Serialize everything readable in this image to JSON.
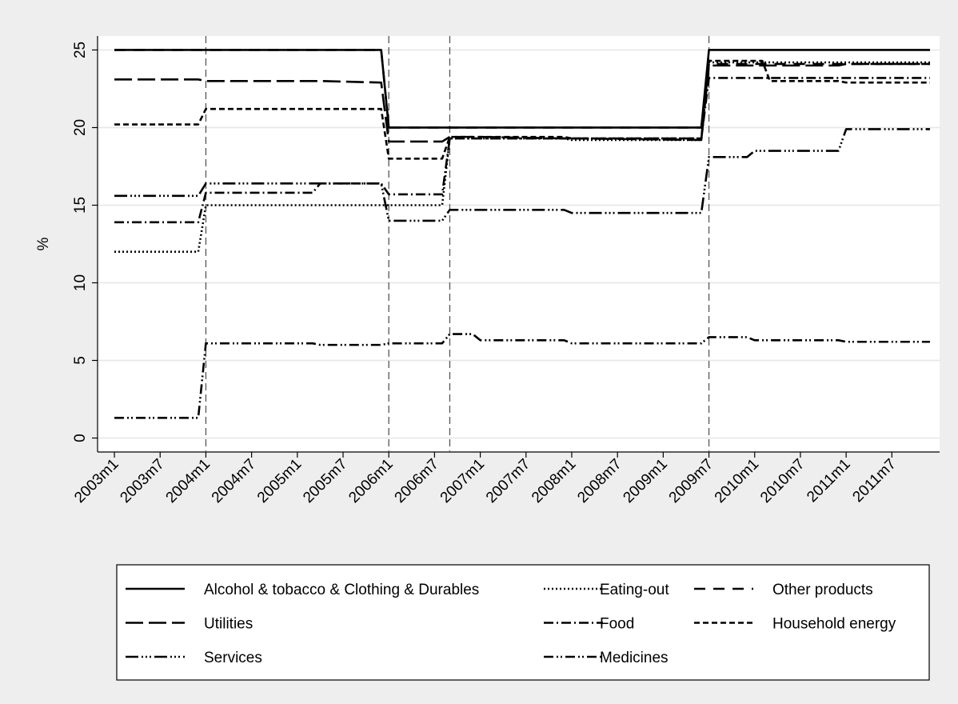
{
  "chart_data": {
    "type": "line",
    "ylabel": "%",
    "x": [
      516,
      527,
      528,
      542,
      543,
      551,
      552,
      559,
      560,
      563,
      564,
      575,
      576,
      593,
      594,
      599,
      600,
      601,
      602,
      611,
      612,
      623
    ],
    "xlim": [
      514,
      624
    ],
    "xticks": [
      {
        "value": 516,
        "label": "2003m1"
      },
      {
        "value": 522,
        "label": "2003m7"
      },
      {
        "value": 528,
        "label": "2004m1"
      },
      {
        "value": 534,
        "label": "2004m7"
      },
      {
        "value": 540,
        "label": "2005m1"
      },
      {
        "value": 546,
        "label": "2005m7"
      },
      {
        "value": 552,
        "label": "2006m1"
      },
      {
        "value": 558,
        "label": "2006m7"
      },
      {
        "value": 564,
        "label": "2007m1"
      },
      {
        "value": 570,
        "label": "2007m7"
      },
      {
        "value": 576,
        "label": "2008m1"
      },
      {
        "value": 582,
        "label": "2008m7"
      },
      {
        "value": 588,
        "label": "2009m1"
      },
      {
        "value": 594,
        "label": "2009m7"
      },
      {
        "value": 600,
        "label": "2010m1"
      },
      {
        "value": 606,
        "label": "2010m7"
      },
      {
        "value": 612,
        "label": "2011m1"
      },
      {
        "value": 618,
        "label": "2011m7"
      }
    ],
    "ylim": [
      -0.9,
      25.9
    ],
    "yticks": [
      0,
      5,
      10,
      15,
      20,
      25
    ],
    "grid": true,
    "xlines": [
      528,
      552,
      560,
      594
    ],
    "legend": {
      "position": "bottom",
      "cols": 3
    },
    "series": [
      {
        "name": "Alcohol & tobacco & Clothing & Durables",
        "color": "#000000",
        "pattern": "solid",
        "values": [
          25,
          25,
          25,
          25,
          25,
          25,
          20,
          20,
          20,
          20,
          20,
          20,
          20,
          20,
          25,
          25,
          25,
          25,
          25,
          25,
          25,
          25
        ]
      },
      {
        "name": "Eating-out",
        "color": "#000000",
        "pattern": "dot",
        "values": [
          12,
          12,
          15,
          15,
          15,
          15,
          15,
          15,
          19.3,
          19.3,
          19.3,
          19.3,
          19.2,
          19.2,
          24.2,
          24.2,
          24.2,
          24.2,
          24.2,
          24.2,
          24.2,
          24.2
        ]
      },
      {
        "name": "Other products",
        "color": "#000000",
        "pattern": "longdash_gap",
        "values": [
          25,
          25,
          25,
          25,
          25,
          25,
          20,
          20,
          20,
          20,
          20,
          20,
          20,
          20,
          24.1,
          24.1,
          24.1,
          24.1,
          24.1,
          24.1,
          24.1,
          24.1
        ]
      },
      {
        "name": "Utilities",
        "color": "#000000",
        "pattern": "longdash",
        "values": [
          23.1,
          23.1,
          23,
          23,
          23,
          22.9,
          19.1,
          19.1,
          19.4,
          19.4,
          19.4,
          19.3,
          19.3,
          19.2,
          24,
          24,
          24,
          24,
          24,
          24,
          24.1,
          24.1
        ]
      },
      {
        "name": "Food",
        "color": "#000000",
        "pattern": "dash_dot",
        "values": [
          13.9,
          13.9,
          15.8,
          15.8,
          16.4,
          16.4,
          15.7,
          15.7,
          19.3,
          19.3,
          19.3,
          19.3,
          19.3,
          19.3,
          23.2,
          23.2,
          23.2,
          23.2,
          23.2,
          23.2,
          23.2,
          23.2
        ]
      },
      {
        "name": "Household energy",
        "color": "#000000",
        "pattern": "shortdash",
        "values": [
          20.2,
          20.2,
          21.2,
          21.2,
          21.2,
          21.2,
          18,
          18,
          19.4,
          19.4,
          19.4,
          19.4,
          19.3,
          19.3,
          24.3,
          24.3,
          24.3,
          24.3,
          23,
          23,
          22.9,
          22.9
        ]
      },
      {
        "name": "Services",
        "color": "#000000",
        "pattern": "longdash_3dot",
        "values": [
          15.6,
          15.6,
          16.4,
          16.4,
          16.4,
          16.4,
          14,
          14,
          14.7,
          14.7,
          14.7,
          14.7,
          14.5,
          14.5,
          18.1,
          18.1,
          18.5,
          18.5,
          18.5,
          18.5,
          19.9,
          19.9
        ]
      },
      {
        "name": "Medicines",
        "color": "#000000",
        "pattern": "dash_2dot",
        "values": [
          1.3,
          1.3,
          6.1,
          6.1,
          6,
          6,
          6.1,
          6.1,
          6.7,
          6.7,
          6.3,
          6.3,
          6.1,
          6.1,
          6.5,
          6.5,
          6.3,
          6.3,
          6.3,
          6.3,
          6.2,
          6.2
        ]
      }
    ]
  }
}
